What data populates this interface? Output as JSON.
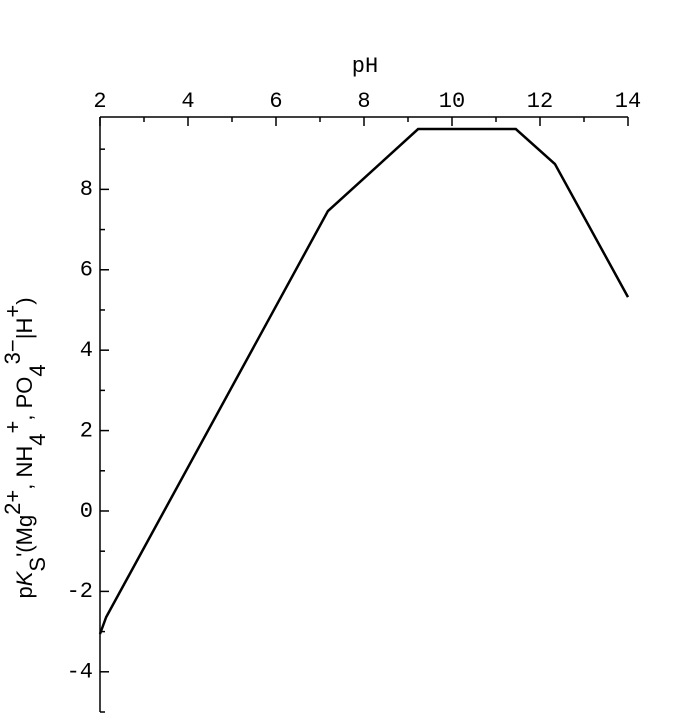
{
  "chart_data": {
    "type": "line",
    "x_label": "pH",
    "y_label": [
      {
        "text": "p"
      },
      {
        "text": "K",
        "style": "italic"
      },
      {
        "text": "S",
        "shift": "sub"
      },
      {
        "text": "'(Mg"
      },
      {
        "text": "2+",
        "shift": "sup"
      },
      {
        "text": ", NH"
      },
      {
        "text": "4",
        "shift": "sub"
      },
      {
        "text": "+",
        "shift": "sup"
      },
      {
        "text": ", PO"
      },
      {
        "text": "4",
        "shift": "sub"
      },
      {
        "text": "3−",
        "shift": "sup"
      },
      {
        "text": "|H"
      },
      {
        "text": "+",
        "shift": "sup"
      },
      {
        "text": ")"
      }
    ],
    "x": [
      2,
      2.14,
      7.18,
      9.23,
      11.45,
      12.34,
      14
    ],
    "series": [
      {
        "color": "#000000",
        "values": [
          -3.06,
          -2.64,
          7.46,
          9.5,
          9.5,
          8.63,
          5.32
        ]
      }
    ],
    "xlim": [
      2,
      14
    ],
    "xticks": [
      2,
      4,
      6,
      8,
      10,
      12,
      14
    ],
    "x_minor_ticks": [
      3,
      5,
      7,
      9,
      11,
      13
    ],
    "ylim": [
      -5,
      9.8
    ],
    "yticks": [
      -4,
      -2,
      0,
      2,
      4,
      6,
      8
    ],
    "y_minor_ticks": [
      -5,
      -3,
      -1,
      1,
      3,
      5,
      7,
      9
    ],
    "x_axis_position": "top"
  }
}
